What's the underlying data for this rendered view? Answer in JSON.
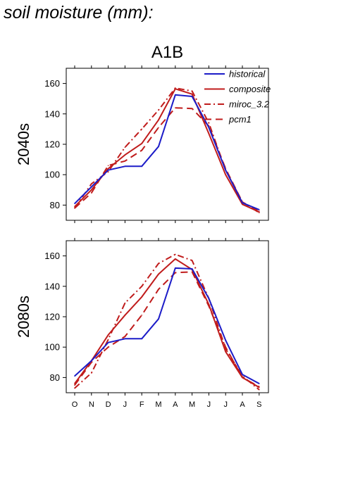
{
  "figure_title": "soil moisture (mm):",
  "colors": {
    "historical": "#1c1cc8",
    "projection": "#c01c1c",
    "axis": "#000000"
  },
  "chart_data": {
    "type": "line",
    "title": "A1B",
    "categories": [
      "O",
      "N",
      "D",
      "J",
      "F",
      "M",
      "A",
      "M",
      "J",
      "J",
      "A",
      "S"
    ],
    "ylim": [
      70,
      170
    ],
    "yticks": [
      80,
      100,
      120,
      140,
      160
    ],
    "grid": false,
    "legend_placement": "top-right",
    "legend": [
      "historical",
      "composite",
      "miroc_3.2",
      "pcm1"
    ],
    "panels": [
      {
        "ylabel": "2040s",
        "series": [
          {
            "name": "historical",
            "style": "solid",
            "color": "#1c1cc8",
            "values": [
              81,
              92,
              103,
              105.5,
              105.5,
              118.5,
              152.5,
              151.5,
              131,
              103,
              81.5,
              77
            ]
          },
          {
            "name": "composite",
            "style": "solid",
            "color": "#c01c1c",
            "values": [
              79,
              90,
              104,
              113,
              120.5,
              136,
              156.5,
              153,
              127,
              100,
              80.5,
              75.5
            ]
          },
          {
            "name": "miroc_3.2",
            "style": "dashdot",
            "color": "#c01c1c",
            "values": [
              78,
              94,
              102,
              118,
              130,
              142.5,
              157,
              155,
              134,
              103,
              82,
              76
            ]
          },
          {
            "name": "pcm1",
            "style": "dashed",
            "color": "#c01c1c",
            "values": [
              78,
              88,
              106,
              109,
              116,
              131,
              144,
              143.5,
              132,
              104,
              82,
              75
            ]
          }
        ]
      },
      {
        "ylabel": "2080s",
        "series": [
          {
            "name": "historical",
            "style": "solid",
            "color": "#1c1cc8",
            "values": [
              81,
              91,
              103,
              105.5,
              105.5,
              118.5,
              152,
              151.5,
              132,
              104.5,
              82,
              76
            ]
          },
          {
            "name": "composite",
            "style": "solid",
            "color": "#c01c1c",
            "values": [
              76,
              91,
              108,
              121,
              133,
              148,
              158,
              151,
              128,
              97,
              80,
              73.5
            ]
          },
          {
            "name": "miroc_3.2",
            "style": "dashdot",
            "color": "#c01c1c",
            "values": [
              73,
              83,
              105,
              129,
              140,
              155,
              161,
              157,
              132,
              99,
              81,
              72
            ]
          },
          {
            "name": "pcm1",
            "style": "dashed",
            "color": "#c01c1c",
            "values": [
              75,
              90,
              100,
              107,
              121,
              138,
              149,
              149.5,
              127,
              100,
              80,
              74
            ]
          }
        ]
      }
    ]
  }
}
